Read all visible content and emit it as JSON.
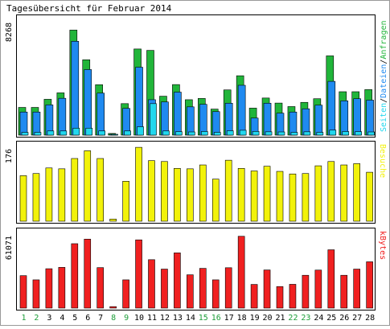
{
  "chart_data": [
    {
      "type": "bar",
      "title": "Tagesübersicht für Februar 2014",
      "categories": [
        "1",
        "2",
        "3",
        "4",
        "5",
        "6",
        "7",
        "8",
        "9",
        "10",
        "11",
        "12",
        "13",
        "14",
        "15",
        "16",
        "17",
        "18",
        "19",
        "20",
        "21",
        "22",
        "23",
        "24",
        "25",
        "26",
        "27",
        "28"
      ],
      "weekend_days": [
        "1",
        "2",
        "8",
        "9",
        "15",
        "16",
        "22",
        "23"
      ],
      "ylabel_max": "8268",
      "ymax": 8268,
      "legend": [
        "Seiten",
        "Dateien",
        "Anfragen"
      ],
      "series": [
        {
          "name": "Anfragen",
          "color": "#21B53A",
          "values": [
            1980,
            1980,
            2560,
            3020,
            7500,
            5380,
            3600,
            120,
            2250,
            6150,
            6050,
            2780,
            3610,
            2530,
            2620,
            1860,
            3230,
            4240,
            1930,
            2650,
            2290,
            2040,
            2340,
            2600,
            5660,
            3100,
            3100,
            3250
          ]
        },
        {
          "name": "Dateien",
          "color": "#1F8AF0",
          "values": [
            1650,
            1650,
            2160,
            2630,
            6700,
            4680,
            3000,
            60,
            1910,
            4850,
            2530,
            2370,
            3070,
            2020,
            2200,
            1680,
            2280,
            3560,
            1220,
            2280,
            1570,
            1650,
            1880,
            2140,
            3840,
            2450,
            2600,
            2500
          ]
        },
        {
          "name": "Seiten",
          "color": "#21D7EE",
          "values": [
            200,
            200,
            300,
            300,
            500,
            500,
            300,
            30,
            300,
            600,
            2250,
            300,
            250,
            230,
            260,
            200,
            310,
            350,
            270,
            240,
            230,
            200,
            240,
            200,
            360,
            260,
            250,
            230
          ]
        }
      ]
    },
    {
      "type": "bar",
      "categories": [
        "1",
        "2",
        "3",
        "4",
        "5",
        "6",
        "7",
        "8",
        "9",
        "10",
        "11",
        "12",
        "13",
        "14",
        "15",
        "16",
        "17",
        "18",
        "19",
        "20",
        "21",
        "22",
        "23",
        "24",
        "25",
        "26",
        "27",
        "28"
      ],
      "ylabel_max": "176",
      "ymax": 176,
      "legend": [
        "Besuche"
      ],
      "series": [
        {
          "name": "Besuche",
          "color": "#F2F20A",
          "values": [
            106,
            111,
            124,
            122,
            146,
            164,
            146,
            5,
            93,
            172,
            141,
            139,
            123,
            122,
            131,
            98,
            142,
            123,
            117,
            128,
            116,
            110,
            111,
            129,
            139,
            131,
            134,
            114
          ]
        }
      ]
    },
    {
      "type": "bar",
      "categories": [
        "1",
        "2",
        "3",
        "4",
        "5",
        "6",
        "7",
        "8",
        "9",
        "10",
        "11",
        "12",
        "13",
        "14",
        "15",
        "16",
        "17",
        "18",
        "19",
        "20",
        "21",
        "22",
        "23",
        "24",
        "25",
        "26",
        "27",
        "28"
      ],
      "ylabel_max": "61071",
      "ymax": 61071,
      "legend": [
        "kBytes"
      ],
      "series": [
        {
          "name": "kBytes",
          "color": "#F02020",
          "values": [
            26200,
            22800,
            31800,
            32900,
            52000,
            55700,
            32700,
            1200,
            22800,
            55100,
            39100,
            31500,
            44600,
            26900,
            32100,
            22800,
            32600,
            58000,
            19100,
            30800,
            17400,
            19200,
            26500,
            30700,
            47100,
            26500,
            31500,
            37400
          ]
        }
      ]
    }
  ]
}
